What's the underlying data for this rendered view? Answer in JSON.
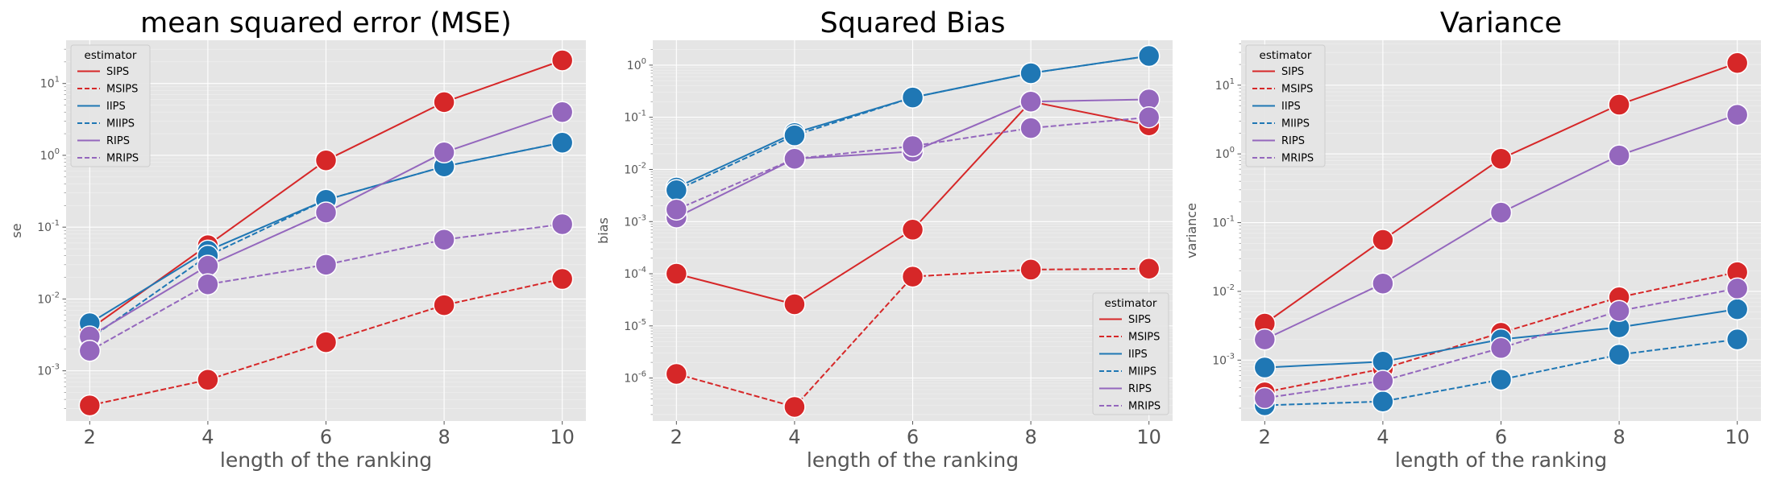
{
  "chart_data": [
    {
      "type": "line",
      "title": "mean squared error (MSE)",
      "xlabel": "length of the ranking",
      "ylabel": "se",
      "yscale": "log",
      "x": [
        2,
        4,
        6,
        8,
        10
      ],
      "x_ticks": [
        "2",
        "4",
        "6",
        "8",
        "10"
      ],
      "ylim": [
        0.0002,
        40
      ],
      "y_ticks": [
        {
          "exp": "-3",
          "value": 0.001
        },
        {
          "exp": "-2",
          "value": 0.01
        },
        {
          "exp": "-1",
          "value": 0.1
        },
        {
          "exp": "0",
          "value": 1
        },
        {
          "exp": "1",
          "value": 10
        }
      ],
      "grid": true,
      "legend": {
        "title": "estimator",
        "placement": "upper-left"
      },
      "series": [
        {
          "name": "SIPS",
          "color": "#d62728",
          "dash": "solid",
          "values": [
            0.0038,
            0.056,
            0.85,
            5.5,
            21
          ]
        },
        {
          "name": "MSIPS",
          "color": "#d62728",
          "dash": "dashed",
          "values": [
            0.00033,
            0.00075,
            0.0025,
            0.0082,
            0.019
          ]
        },
        {
          "name": "IIPS",
          "color": "#1f77b4",
          "dash": "solid",
          "values": [
            0.0046,
            0.047,
            0.24,
            0.7,
            1.5
          ]
        },
        {
          "name": "MIIPS",
          "color": "#1f77b4",
          "dash": "dashed",
          "values": [
            0.0028,
            0.04,
            0.24,
            0.7,
            1.5
          ]
        },
        {
          "name": "RIPS",
          "color": "#9467bd",
          "dash": "solid",
          "values": [
            0.003,
            0.029,
            0.16,
            1.1,
            4.0
          ]
        },
        {
          "name": "MRIPS",
          "color": "#9467bd",
          "dash": "dashed",
          "values": [
            0.0019,
            0.016,
            0.03,
            0.067,
            0.11
          ]
        }
      ]
    },
    {
      "type": "line",
      "title": "Squared Bias",
      "xlabel": "length of the ranking",
      "ylabel": "bias",
      "yscale": "log",
      "x": [
        2,
        4,
        6,
        8,
        10
      ],
      "x_ticks": [
        "2",
        "4",
        "6",
        "8",
        "10"
      ],
      "ylim": [
        1.5e-07,
        3
      ],
      "y_ticks": [
        {
          "exp": "-6",
          "value": 1e-06
        },
        {
          "exp": "-5",
          "value": 1e-05
        },
        {
          "exp": "-4",
          "value": 0.0001
        },
        {
          "exp": "-3",
          "value": 0.001
        },
        {
          "exp": "-2",
          "value": 0.01
        },
        {
          "exp": "-1",
          "value": 0.1
        },
        {
          "exp": "0",
          "value": 1
        }
      ],
      "grid": true,
      "legend": {
        "title": "estimator",
        "placement": "lower-right"
      },
      "series": [
        {
          "name": "SIPS",
          "color": "#d62728",
          "dash": "solid",
          "values": [
            0.0001,
            2.6e-05,
            0.0007,
            0.2,
            0.07
          ]
        },
        {
          "name": "MSIPS",
          "color": "#d62728",
          "dash": "dashed",
          "values": [
            1.2e-06,
            2.8e-07,
            8.8e-05,
            0.00012,
            0.000125
          ]
        },
        {
          "name": "IIPS",
          "color": "#1f77b4",
          "dash": "solid",
          "values": [
            0.0045,
            0.05,
            0.24,
            0.7,
            1.5
          ]
        },
        {
          "name": "MIIPS",
          "color": "#1f77b4",
          "dash": "dashed",
          "values": [
            0.004,
            0.045,
            0.24,
            0.7,
            1.5
          ]
        },
        {
          "name": "RIPS",
          "color": "#9467bd",
          "dash": "solid",
          "values": [
            0.0012,
            0.016,
            0.022,
            0.2,
            0.22
          ]
        },
        {
          "name": "MRIPS",
          "color": "#9467bd",
          "dash": "dashed",
          "values": [
            0.0017,
            0.016,
            0.028,
            0.062,
            0.1
          ]
        }
      ]
    },
    {
      "type": "line",
      "title": "Variance",
      "xlabel": "length of the ranking",
      "ylabel": "variance",
      "yscale": "log",
      "x": [
        2,
        4,
        6,
        8,
        10
      ],
      "x_ticks": [
        "2",
        "4",
        "6",
        "8",
        "10"
      ],
      "ylim": [
        0.00013,
        45
      ],
      "y_ticks": [
        {
          "exp": "-3",
          "value": 0.001
        },
        {
          "exp": "-2",
          "value": 0.01
        },
        {
          "exp": "-1",
          "value": 0.1
        },
        {
          "exp": "0",
          "value": 1
        },
        {
          "exp": "1",
          "value": 10
        }
      ],
      "grid": true,
      "legend": {
        "title": "estimator",
        "placement": "upper-left"
      },
      "series": [
        {
          "name": "SIPS",
          "color": "#d62728",
          "dash": "solid",
          "values": [
            0.0034,
            0.056,
            0.85,
            5.2,
            21
          ]
        },
        {
          "name": "MSIPS",
          "color": "#d62728",
          "dash": "dashed",
          "values": [
            0.00034,
            0.00075,
            0.0025,
            0.0082,
            0.019
          ]
        },
        {
          "name": "IIPS",
          "color": "#1f77b4",
          "dash": "solid",
          "values": [
            0.00078,
            0.00095,
            0.002,
            0.003,
            0.0055
          ]
        },
        {
          "name": "MIIPS",
          "color": "#1f77b4",
          "dash": "dashed",
          "values": [
            0.00022,
            0.00025,
            0.00052,
            0.0012,
            0.002
          ]
        },
        {
          "name": "RIPS",
          "color": "#9467bd",
          "dash": "solid",
          "values": [
            0.002,
            0.013,
            0.14,
            0.95,
            3.7
          ]
        },
        {
          "name": "MRIPS",
          "color": "#9467bd",
          "dash": "dashed",
          "values": [
            0.00028,
            0.0005,
            0.0015,
            0.0052,
            0.011
          ]
        }
      ]
    }
  ]
}
